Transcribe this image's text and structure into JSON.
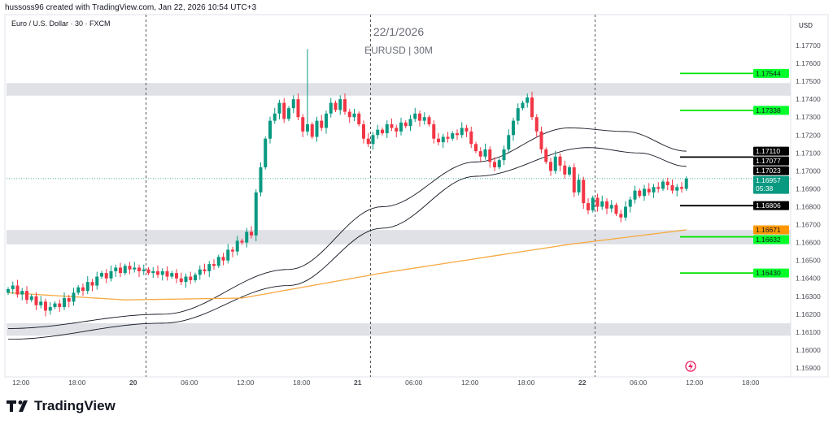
{
  "header": "hussoss96 created with TradingView.com, Jan 22, 2026 10:54 UTC+3",
  "symbol": "Euro / U.S. Dollar · 30 · FXCM",
  "watermark": {
    "date": "22/1/2026",
    "pair": "EURUSD | 30M"
  },
  "currency": "USD",
  "logo": "TradingView",
  "chart_data": {
    "type": "candlestick",
    "interval": "30m",
    "ylim": [
      1.1585,
      1.178
    ],
    "y_ticks": [
      "1.17700",
      "1.17600",
      "1.17500",
      "1.17400",
      "1.17300",
      "1.17200",
      "1.17100",
      "1.17000",
      "1.16900",
      "1.16800",
      "1.16700",
      "1.16600",
      "1.16500",
      "1.16400",
      "1.16300",
      "1.16200",
      "1.16100",
      "1.16000",
      "1.15900"
    ],
    "x_ticks": [
      {
        "label": "12:00",
        "i": 5
      },
      {
        "label": "18:00",
        "i": 17
      },
      {
        "label": "20",
        "i": 29
      },
      {
        "label": "06:00",
        "i": 41
      },
      {
        "label": "12:00",
        "i": 53
      },
      {
        "label": "18:00",
        "i": 65
      },
      {
        "label": "21",
        "i": 77
      },
      {
        "label": "06:00",
        "i": 89
      },
      {
        "label": "12:00",
        "i": 101
      },
      {
        "label": "18:00",
        "i": 113
      },
      {
        "label": "22",
        "i": 125
      },
      {
        "label": "06:00",
        "i": 137
      },
      {
        "label": "12:00",
        "i": 149
      },
      {
        "label": "18:00",
        "i": 161
      }
    ],
    "day_separators": [
      30,
      78,
      126
    ],
    "first_open": 1.1632,
    "closes": [
      1.1634,
      1.1636,
      1.1631,
      1.1633,
      1.1628,
      1.163,
      1.1625,
      1.1627,
      1.1622,
      1.1624,
      1.1626,
      1.1624,
      1.1629,
      1.1627,
      1.1632,
      1.1635,
      1.1633,
      1.1638,
      1.1636,
      1.1641,
      1.1643,
      1.164,
      1.1644,
      1.1646,
      1.1643,
      1.1647,
      1.1645,
      1.1646,
      1.1644,
      1.1645,
      1.1643,
      1.1644,
      1.1642,
      1.1644,
      1.1641,
      1.1643,
      1.164,
      1.1638,
      1.1641,
      1.1639,
      1.1642,
      1.1645,
      1.1644,
      1.1648,
      1.1647,
      1.1652,
      1.165,
      1.1656,
      1.1655,
      1.1661,
      1.166,
      1.1666,
      1.1664,
      1.1688,
      1.1702,
      1.1718,
      1.1728,
      1.1732,
      1.1738,
      1.1729,
      1.1735,
      1.174,
      1.173,
      1.1722,
      1.1726,
      1.1719,
      1.1728,
      1.1724,
      1.1732,
      1.1738,
      1.1734,
      1.174,
      1.1733,
      1.173,
      1.1732,
      1.1726,
      1.1718,
      1.1715,
      1.172,
      1.1723,
      1.1721,
      1.1726,
      1.1724,
      1.1722,
      1.1727,
      1.1725,
      1.1729,
      1.1732,
      1.1728,
      1.173,
      1.1726,
      1.1718,
      1.1716,
      1.1719,
      1.1718,
      1.1721,
      1.172,
      1.1724,
      1.1722,
      1.1715,
      1.1711,
      1.1708,
      1.1712,
      1.1705,
      1.1702,
      1.1706,
      1.1712,
      1.172,
      1.1728,
      1.1735,
      1.1738,
      1.1741,
      1.173,
      1.1722,
      1.1712,
      1.1705,
      1.17,
      1.1708,
      1.1703,
      1.1698,
      1.1702,
      1.1688,
      1.1695,
      1.1682,
      1.1678,
      1.1685,
      1.168,
      1.1683,
      1.1679,
      1.1681,
      1.1676,
      1.1674,
      1.168,
      1.1684,
      1.1689,
      1.1686,
      1.169,
      1.1688,
      1.1691,
      1.169,
      1.1694,
      1.1692,
      1.1689,
      1.1691,
      1.169,
      1.16957
    ],
    "spike_high": {
      "i": 64,
      "price": 1.1768
    },
    "zones": [
      [
        1.1742,
        1.1749
      ],
      [
        1.1659,
        1.1667
      ],
      [
        1.1608,
        1.1615
      ]
    ],
    "moving_averages": [
      {
        "name": "upper",
        "color": "#131722",
        "points": [
          [
            0,
            1.1612
          ],
          [
            33,
            1.162
          ],
          [
            60,
            1.1645
          ],
          [
            80,
            1.168
          ],
          [
            100,
            1.1705
          ],
          [
            120,
            1.1724
          ],
          [
            132,
            1.1722
          ],
          [
            145,
            1.1711
          ]
        ]
      },
      {
        "name": "lower",
        "color": "#131722",
        "points": [
          [
            0,
            1.1606
          ],
          [
            33,
            1.1615
          ],
          [
            60,
            1.1636
          ],
          [
            80,
            1.1668
          ],
          [
            100,
            1.1697
          ],
          [
            124,
            1.1713
          ],
          [
            135,
            1.171
          ],
          [
            145,
            1.17025
          ]
        ]
      },
      {
        "name": "ma-long",
        "color": "#f7a941",
        "points": [
          [
            0,
            1.1632
          ],
          [
            25,
            1.1628
          ],
          [
            50,
            1.1629
          ],
          [
            80,
            1.1643
          ],
          [
            120,
            1.1659
          ],
          [
            145,
            1.16671
          ]
        ]
      }
    ],
    "levels": [
      {
        "price": "1.17544",
        "color": "#00e600",
        "bg": "#00ff2a",
        "fg": "#131722"
      },
      {
        "price": "1.17338",
        "color": "#00e600",
        "bg": "#00ff2a",
        "fg": "#131722"
      },
      {
        "price": "1.17077",
        "color": "#000000",
        "bg": "#000000",
        "fg": "#ffffff"
      },
      {
        "price": "1.16806",
        "color": "#000000",
        "bg": "#000000",
        "fg": "#ffffff"
      },
      {
        "price": "1.16632",
        "color": "#00e600",
        "bg": "#00ff2a",
        "fg": "#131722"
      },
      {
        "price": "1.16430",
        "color": "#00e600",
        "bg": "#00ff2a",
        "fg": "#131722"
      }
    ],
    "extra_labels": [
      {
        "price": "1.17110",
        "bg": "#000000",
        "fg": "#ffffff"
      },
      {
        "price": "1.17023",
        "bg": "#000000",
        "fg": "#ffffff"
      },
      {
        "price": "1.16671",
        "bg": "#ff9800",
        "fg": "#131722"
      }
    ],
    "last_price": {
      "price": "1.16957",
      "countdown": "05:38",
      "color": "#089981"
    },
    "colors": {
      "up": "#089981",
      "down": "#f23645"
    }
  }
}
